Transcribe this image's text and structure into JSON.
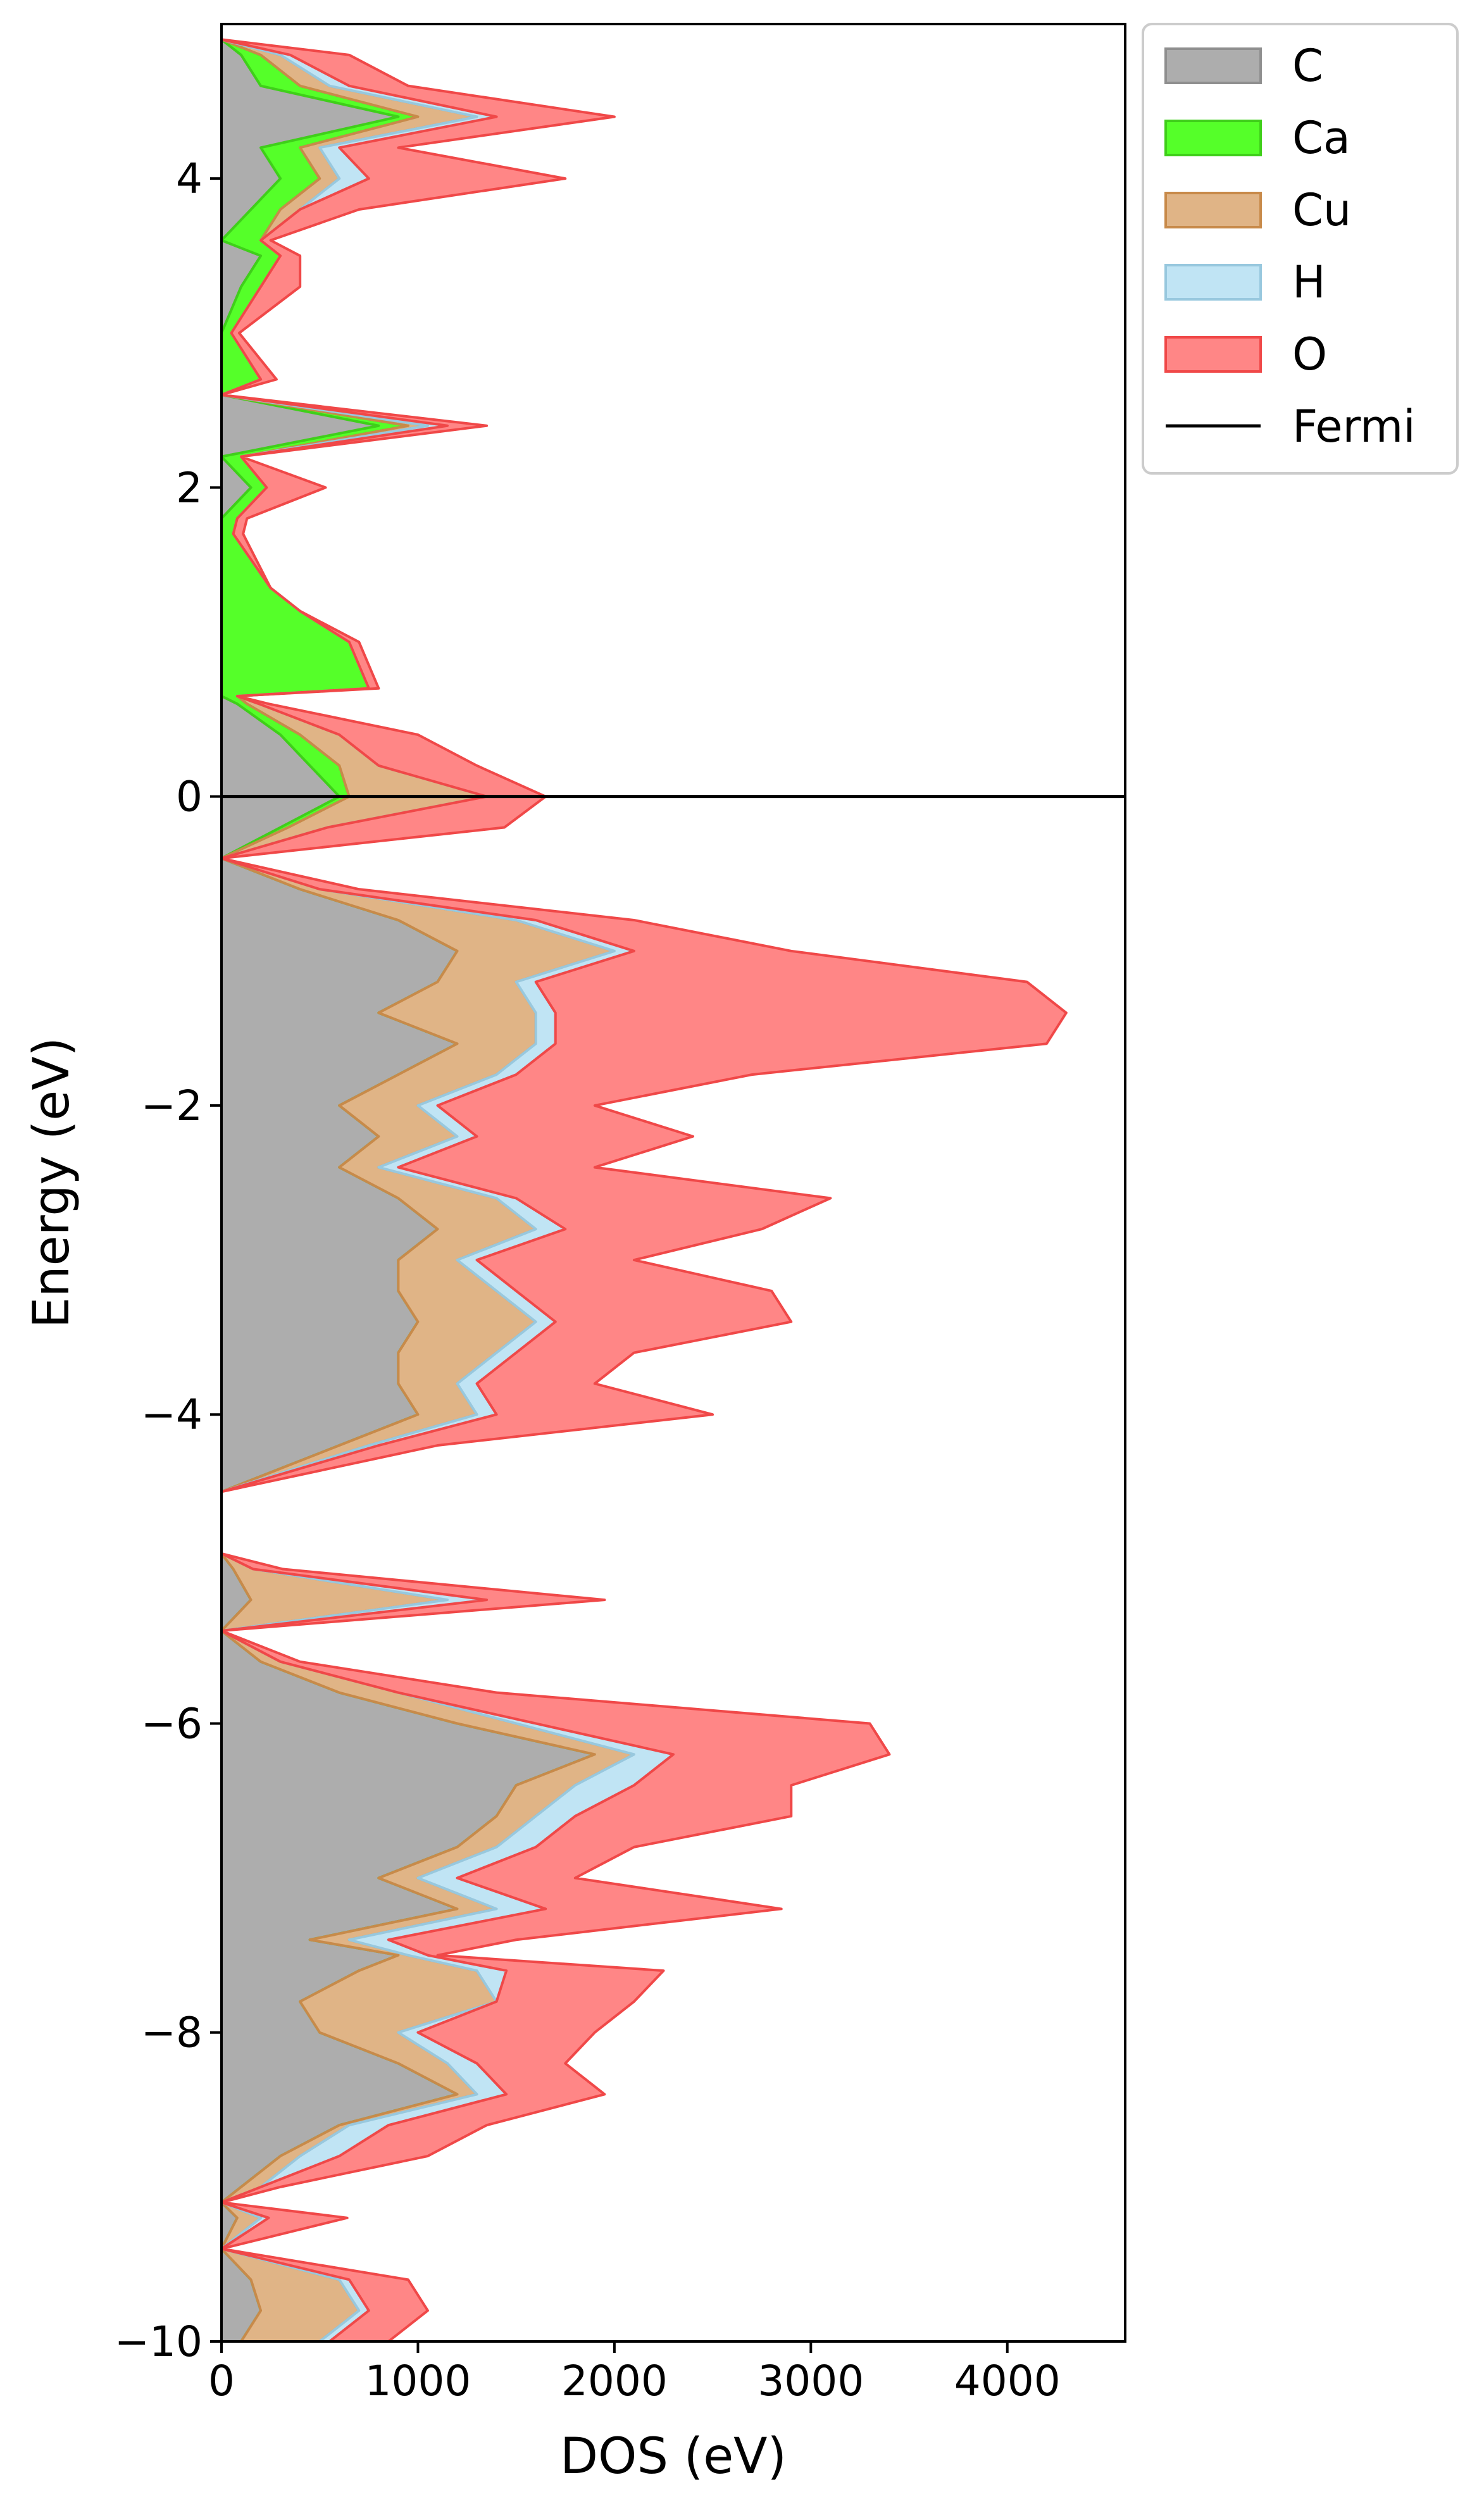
{
  "chart_data": {
    "type": "area",
    "xlabel": "DOS (eV)",
    "ylabel": "Energy (eV)",
    "xlim": [
      0,
      4600
    ],
    "ylim": [
      -10,
      5
    ],
    "xticks": [
      0,
      1000,
      2000,
      3000,
      4000
    ],
    "xtick_labels": [
      "0",
      "1000",
      "2000",
      "3000",
      "4000"
    ],
    "yticks": [
      -10,
      -8,
      -6,
      -4,
      -2,
      0,
      2,
      4
    ],
    "ytick_labels": [
      "−10",
      "−8",
      "−6",
      "−4",
      "−2",
      "0",
      "2",
      "4"
    ],
    "orientation": "horizontal-stacked",
    "legend_placement": "outside upper right",
    "energies": [
      -10.0,
      -9.8,
      -9.6,
      -9.4,
      -9.2,
      -9.1,
      -9.0,
      -8.8,
      -8.6,
      -8.4,
      -8.2,
      -8.0,
      -7.8,
      -7.6,
      -7.5,
      -7.4,
      -7.2,
      -7.0,
      -6.8,
      -6.6,
      -6.4,
      -6.2,
      -6.0,
      -5.8,
      -5.6,
      -5.4,
      -5.2,
      -5.0,
      -4.9,
      -4.5,
      -4.2,
      -4.0,
      -3.8,
      -3.6,
      -3.4,
      -3.2,
      -3.0,
      -2.8,
      -2.6,
      -2.4,
      -2.2,
      -2.0,
      -1.8,
      -1.6,
      -1.4,
      -1.2,
      -1.0,
      -0.8,
      -0.6,
      -0.4,
      -0.2,
      0.0,
      0.2,
      0.4,
      0.6,
      0.65,
      0.7,
      1.0,
      1.2,
      1.35,
      1.7,
      1.8,
      2.0,
      2.2,
      2.4,
      2.6,
      2.7,
      3.0,
      3.3,
      3.5,
      3.6,
      3.8,
      4.0,
      4.2,
      4.4,
      4.6,
      4.8,
      4.9
    ],
    "series": [
      {
        "name": "C",
        "color": "#a9a9a9",
        "edge": "#8f8f8f",
        "values": [
          100,
          200,
          150,
          0,
          80,
          0,
          100,
          300,
          600,
          1200,
          900,
          500,
          400,
          700,
          900,
          450,
          1200,
          800,
          1200,
          1400,
          1500,
          1900,
          1200,
          600,
          200,
          0,
          150,
          60,
          0,
          0,
          600,
          1000,
          900,
          900,
          1000,
          900,
          900,
          1100,
          900,
          600,
          800,
          600,
          900,
          1200,
          800,
          1100,
          1200,
          900,
          400,
          0,
          300,
          600,
          450,
          300,
          80,
          0,
          0,
          0,
          0,
          0,
          0,
          0,
          150,
          0,
          800,
          0,
          0,
          0,
          100,
          200,
          0,
          150,
          300,
          200,
          900,
          200,
          100,
          0
        ]
      },
      {
        "name": "Ca",
        "color": "#4cff1e",
        "edge": "#3fcf1a",
        "values": [
          0,
          0,
          0,
          0,
          0,
          0,
          0,
          0,
          0,
          0,
          0,
          0,
          0,
          0,
          0,
          0,
          0,
          0,
          0,
          0,
          0,
          0,
          0,
          0,
          0,
          0,
          0,
          0,
          0,
          0,
          0,
          0,
          0,
          0,
          0,
          0,
          0,
          0,
          0,
          0,
          0,
          0,
          0,
          0,
          0,
          0,
          0,
          0,
          0,
          0,
          40,
          50,
          150,
          100,
          50,
          80,
          750,
          650,
          400,
          250,
          60,
          80,
          80,
          100,
          150,
          0,
          200,
          50,
          100,
          100,
          200,
          150,
          200,
          200,
          100,
          200,
          100,
          0
        ]
      },
      {
        "name": "Cu",
        "color": "#deb07f",
        "edge": "#c88a4a",
        "values": [
          400,
          500,
          450,
          0,
          120,
          0,
          100,
          100,
          50,
          100,
          250,
          400,
          1000,
          600,
          50,
          200,
          200,
          200,
          200,
          200,
          300,
          200,
          300,
          300,
          100,
          0,
          1000,
          100,
          0,
          0,
          150,
          300,
          300,
          500,
          600,
          500,
          300,
          500,
          500,
          200,
          400,
          400,
          500,
          400,
          800,
          400,
          800,
          600,
          100,
          0,
          200,
          700,
          200,
          200,
          60,
          0,
          0,
          0,
          0,
          0,
          0,
          0,
          0,
          0,
          100,
          0,
          0,
          0,
          0,
          0,
          0,
          100,
          100,
          100,
          300,
          150,
          100,
          0
        ]
      },
      {
        "name": "H",
        "color": "#bde3f3",
        "edge": "#98c8de",
        "values": [
          50,
          50,
          50,
          0,
          40,
          0,
          0,
          200,
          200,
          150,
          150,
          100,
          0,
          150,
          100,
          200,
          250,
          200,
          200,
          200,
          300,
          200,
          100,
          0,
          0,
          0,
          200,
          0,
          0,
          0,
          50,
          100,
          100,
          100,
          100,
          100,
          100,
          150,
          100,
          100,
          100,
          100,
          100,
          100,
          100,
          100,
          100,
          100,
          0,
          0,
          0,
          0,
          0,
          0,
          0,
          0,
          0,
          0,
          0,
          0,
          0,
          0,
          0,
          0,
          100,
          0,
          0,
          0,
          0,
          0,
          0,
          0,
          150,
          100,
          100,
          100,
          50,
          0
        ]
      },
      {
        "name": "O",
        "color": "#ff7f7f",
        "edge": "#f04848",
        "values": [
          300,
          300,
          300,
          0,
          400,
          0,
          100,
          450,
          500,
          500,
          450,
          900,
          700,
          800,
          50,
          650,
          1200,
          600,
          500,
          1100,
          800,
          1100,
          1700,
          500,
          100,
          0,
          600,
          150,
          0,
          0,
          300,
          1100,
          600,
          600,
          1200,
          1300,
          800,
          1000,
          1600,
          1000,
          1100,
          800,
          1200,
          2500,
          2600,
          2500,
          800,
          500,
          200,
          0,
          900,
          300,
          500,
          400,
          50,
          0,
          50,
          50,
          0,
          0,
          50,
          50,
          300,
          0,
          200,
          0,
          80,
          40,
          200,
          100,
          50,
          300,
          1000,
          300,
          600,
          300,
          300,
          0
        ]
      }
    ],
    "fermi_level": 0,
    "fermi_label": "Fermi"
  },
  "legend": {
    "items": [
      {
        "label": "C",
        "kind": "patch",
        "color": "#a9a9a9",
        "edge": "#8f8f8f"
      },
      {
        "label": "Ca",
        "kind": "patch",
        "color": "#4cff1e",
        "edge": "#3fcf1a"
      },
      {
        "label": "Cu",
        "kind": "patch",
        "color": "#deb07f",
        "edge": "#c88a4a"
      },
      {
        "label": "H",
        "kind": "patch",
        "color": "#bde3f3",
        "edge": "#98c8de"
      },
      {
        "label": "O",
        "kind": "patch",
        "color": "#ff7f7f",
        "edge": "#f04848"
      },
      {
        "label": "Fermi",
        "kind": "line",
        "color": "#000000"
      }
    ]
  }
}
